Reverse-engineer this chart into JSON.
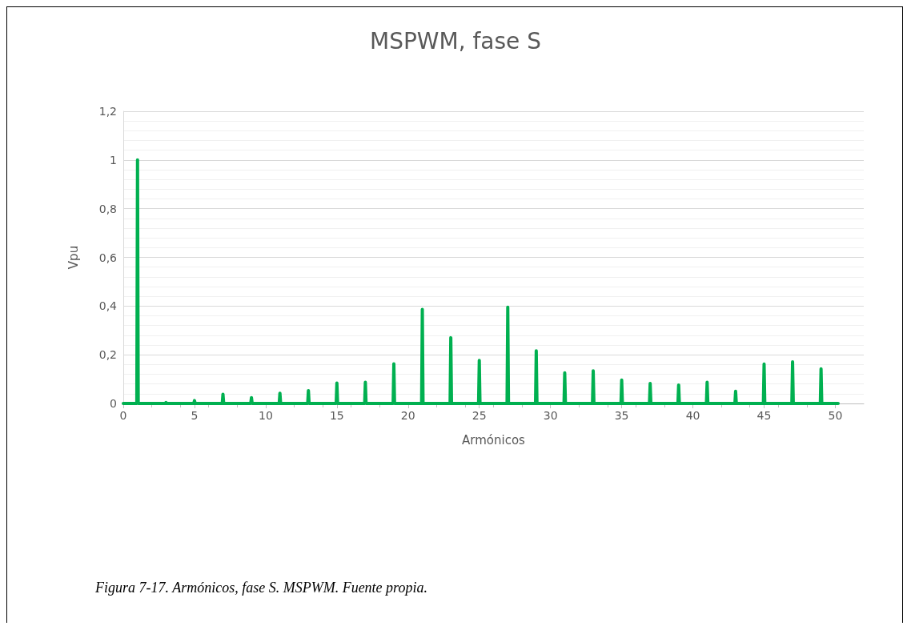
{
  "chart_data": {
    "type": "line",
    "title": "MSPWM, fase S",
    "xlabel": "Armónicos",
    "ylabel": "Vpu",
    "annotations": [
      "Figura 7-17. Armónicos, fase S. MSPWM. Fuente propia."
    ],
    "series": [
      {
        "color": "#00b050",
        "x": [
          0,
          0.95,
          1,
          1.05,
          2.95,
          3,
          3.05,
          4.95,
          5,
          5.05,
          6.95,
          7,
          7.05,
          8.95,
          9,
          9.05,
          10.95,
          11,
          11.05,
          12.95,
          13,
          13.05,
          14.95,
          15,
          15.05,
          16.95,
          17,
          17.05,
          18.95,
          19,
          19.05,
          20.95,
          21,
          21.05,
          22.95,
          23,
          23.05,
          24.95,
          25,
          25.05,
          26.95,
          27,
          27.05,
          28.95,
          29,
          29.05,
          30.95,
          31,
          31.05,
          32.95,
          33,
          33.05,
          34.95,
          35,
          35.05,
          36.95,
          37,
          37.05,
          38.95,
          39,
          39.05,
          40.95,
          41,
          41.05,
          42.95,
          43,
          43.05,
          44.95,
          45,
          45.05,
          46.95,
          47,
          47.05,
          48.95,
          49,
          49.05,
          50.2
        ],
        "values": [
          0,
          0,
          1,
          0,
          0,
          0.004,
          0,
          0,
          0.012,
          0,
          0,
          0.038,
          0,
          0,
          0.024,
          0,
          0,
          0.042,
          0,
          0,
          0.053,
          0,
          0,
          0.084,
          0,
          0,
          0.087,
          0,
          0,
          0.163,
          0,
          0,
          0.386,
          0,
          0,
          0.27,
          0,
          0,
          0.177,
          0,
          0,
          0.395,
          0,
          0,
          0.216,
          0,
          0,
          0.126,
          0,
          0,
          0.134,
          0,
          0,
          0.096,
          0,
          0,
          0.082,
          0,
          0,
          0.076,
          0,
          0,
          0.087,
          0,
          0,
          0.05,
          0,
          0,
          0.162,
          0,
          0,
          0.171,
          0,
          0,
          0.142,
          0,
          0
        ]
      }
    ],
    "xlim": [
      0,
      52
    ],
    "xticks": [
      0,
      5,
      10,
      15,
      20,
      25,
      30,
      35,
      40,
      45,
      50
    ],
    "ylim": [
      0,
      1.2
    ],
    "yticks": [
      0,
      {
        "value": 0.2,
        "label": "0,2"
      },
      {
        "value": 0.4,
        "label": "0,4"
      },
      {
        "value": 0.6,
        "label": "0,6"
      },
      {
        "value": 0.8,
        "label": "0,8"
      },
      1,
      {
        "value": 1.2,
        "label": "1,2"
      }
    ],
    "grid": "y",
    "marker": "none",
    "line_style": "solid"
  }
}
